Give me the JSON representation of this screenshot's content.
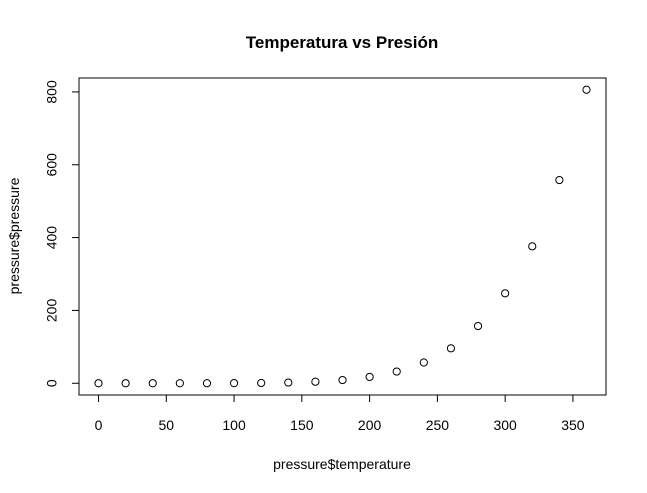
{
  "chart_data": {
    "type": "scatter",
    "title": "Temperatura vs Presión",
    "xlabel": "pressure$temperature",
    "ylabel": "pressure$pressure",
    "x": [
      0,
      20,
      40,
      60,
      80,
      100,
      120,
      140,
      160,
      180,
      200,
      220,
      240,
      260,
      280,
      300,
      320,
      340,
      360
    ],
    "y": [
      0.0002,
      0.0012,
      0.006,
      0.03,
      0.09,
      0.27,
      0.75,
      1.85,
      4.2,
      8.8,
      17.3,
      32.1,
      57,
      96,
      157,
      247,
      376,
      558,
      806
    ],
    "xlim": [
      -14.4,
      374.4
    ],
    "ylim": [
      -32.24,
      838.24
    ],
    "xticks": [
      0,
      50,
      100,
      150,
      200,
      250,
      300,
      350
    ],
    "yticks": [
      0,
      200,
      400,
      600,
      800
    ],
    "marker": "open-circle",
    "grid": false,
    "legend": "none"
  }
}
